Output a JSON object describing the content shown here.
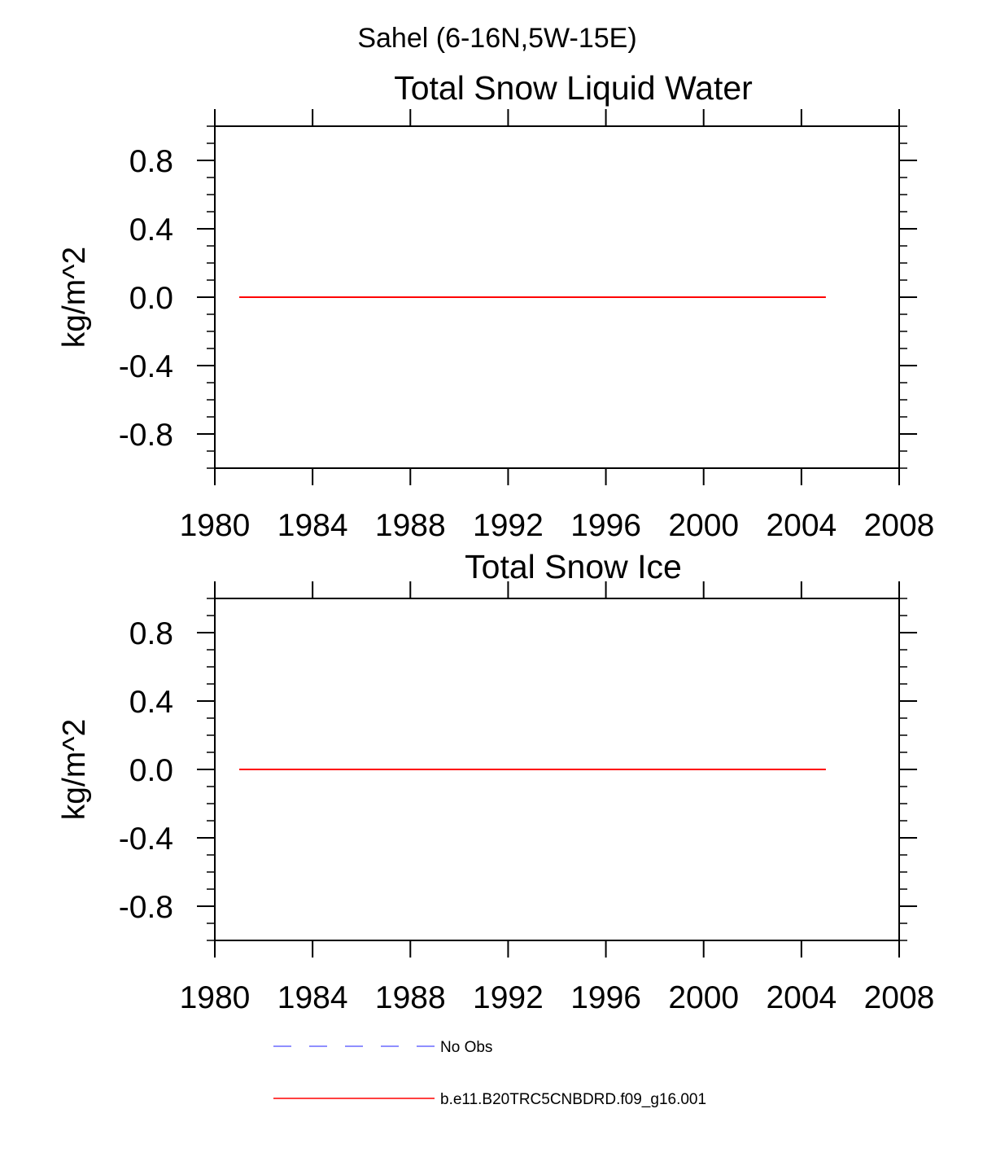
{
  "figure": {
    "title": "Sahel (6-16N,5W-15E)"
  },
  "chart_data": [
    {
      "type": "line",
      "title": "Total Snow Liquid Water",
      "xlabel": "",
      "ylabel": "kg/m^2",
      "xlim": [
        1980,
        2008
      ],
      "ylim": [
        -1.0,
        1.0
      ],
      "xticks": [
        1980,
        1984,
        1988,
        1992,
        1996,
        2000,
        2004,
        2008
      ],
      "xtick_labels": [
        "1980",
        "1984",
        "1988",
        "1992",
        "1996",
        "2000",
        "2004",
        "2008"
      ],
      "yticks": [
        0.8,
        0.4,
        0.0,
        -0.4,
        -0.8
      ],
      "ytick_labels": [
        "0.8",
        "0.4",
        "0.0",
        "-0.4",
        "-0.8"
      ],
      "grid": false,
      "series": [
        {
          "name": "b.e11.B20TRC5CNBDRD.f09_g16.001",
          "color": "#ff0000",
          "x": [
            1981,
            2005
          ],
          "values": [
            0.0,
            0.0
          ]
        }
      ]
    },
    {
      "type": "line",
      "title": "Total Snow Ice",
      "xlabel": "",
      "ylabel": "kg/m^2",
      "xlim": [
        1980,
        2008
      ],
      "ylim": [
        -1.0,
        1.0
      ],
      "xticks": [
        1980,
        1984,
        1988,
        1992,
        1996,
        2000,
        2004,
        2008
      ],
      "xtick_labels": [
        "1980",
        "1984",
        "1988",
        "1992",
        "1996",
        "2000",
        "2004",
        "2008"
      ],
      "yticks": [
        0.8,
        0.4,
        0.0,
        -0.4,
        -0.8
      ],
      "ytick_labels": [
        "0.8",
        "0.4",
        "0.0",
        "-0.4",
        "-0.8"
      ],
      "grid": false,
      "series": [
        {
          "name": "b.e11.B20TRC5CNBDRD.f09_g16.001",
          "color": "#ff0000",
          "x": [
            1981,
            2005
          ],
          "values": [
            0.0,
            0.0
          ]
        }
      ]
    }
  ],
  "legend": {
    "placement": "bottom",
    "items": [
      {
        "label": "No Obs",
        "color": "#6a6aff",
        "style": "dashed"
      },
      {
        "label": "b.e11.B20TRC5CNBDRD.f09_g16.001",
        "color": "#ff0000",
        "style": "solid"
      }
    ]
  }
}
